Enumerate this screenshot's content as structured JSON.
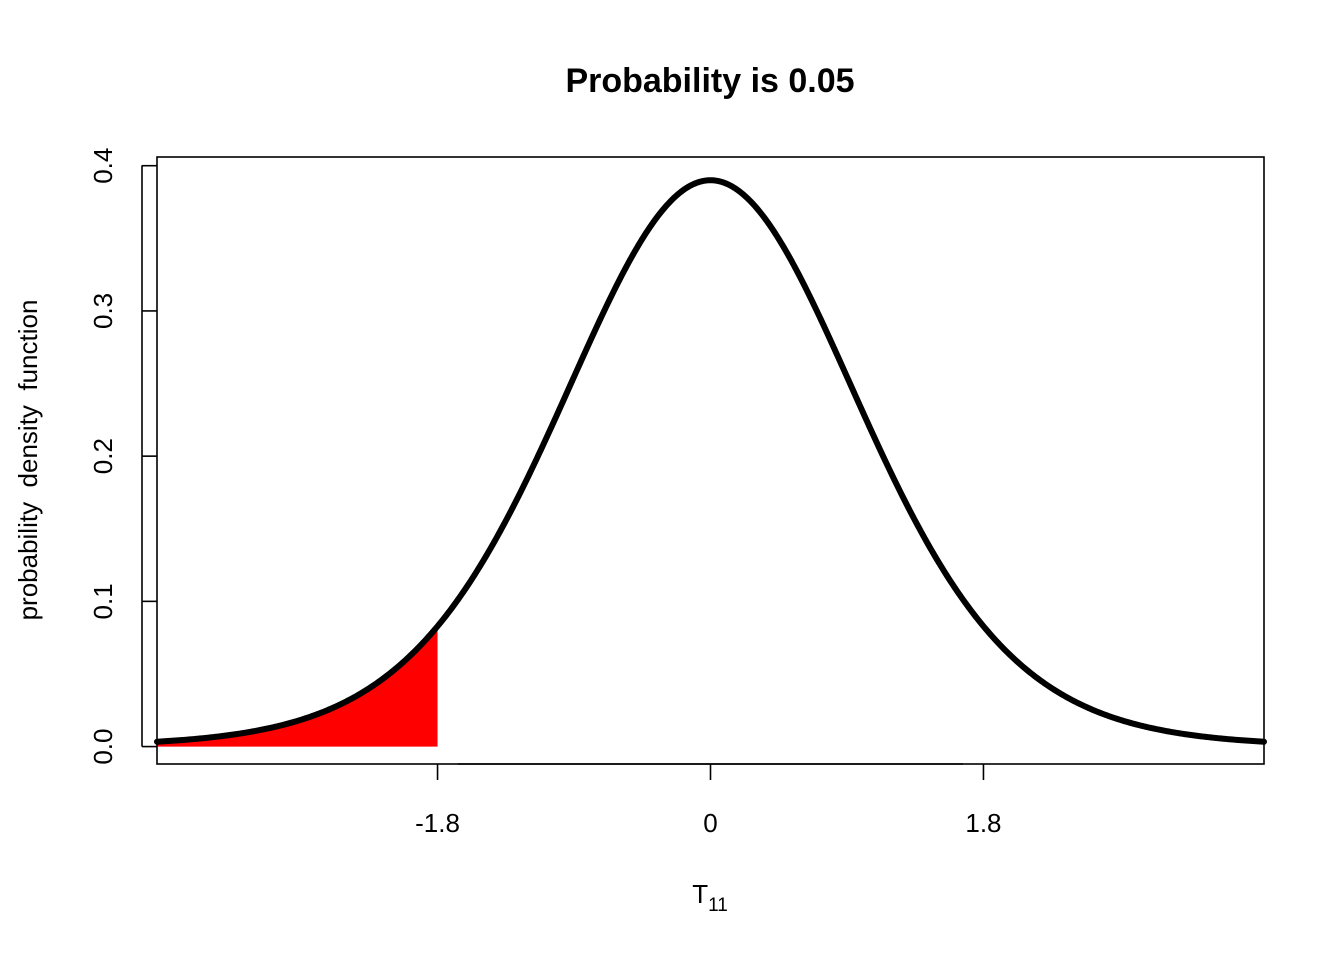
{
  "chart_data": {
    "type": "area",
    "title": "Probability is 0.05",
    "xlabel": "T",
    "xlabel_subscript": "11",
    "ylabel": "probability  density  function",
    "distribution": "Student t",
    "degrees_of_freedom": 11,
    "xlim": [
      -3.65,
      3.65
    ],
    "ylim": [
      -0.012,
      0.406
    ],
    "x_ticks": [
      -1.8,
      0,
      1.8
    ],
    "x_tick_labels": [
      "-1.8",
      "0",
      "1.8"
    ],
    "y_ticks": [
      0.0,
      0.1,
      0.2,
      0.3,
      0.4
    ],
    "y_tick_labels": [
      "0.0",
      "0.1",
      "0.2",
      "0.3",
      "0.4"
    ],
    "curve_range": [
      -3.65,
      3.65
    ],
    "shaded_region": {
      "from": -3.65,
      "to": -1.8,
      "probability": 0.05
    },
    "grid": false,
    "colors": {
      "curve": "#000000",
      "shade": "#ff0000",
      "background": "#ffffff"
    }
  }
}
